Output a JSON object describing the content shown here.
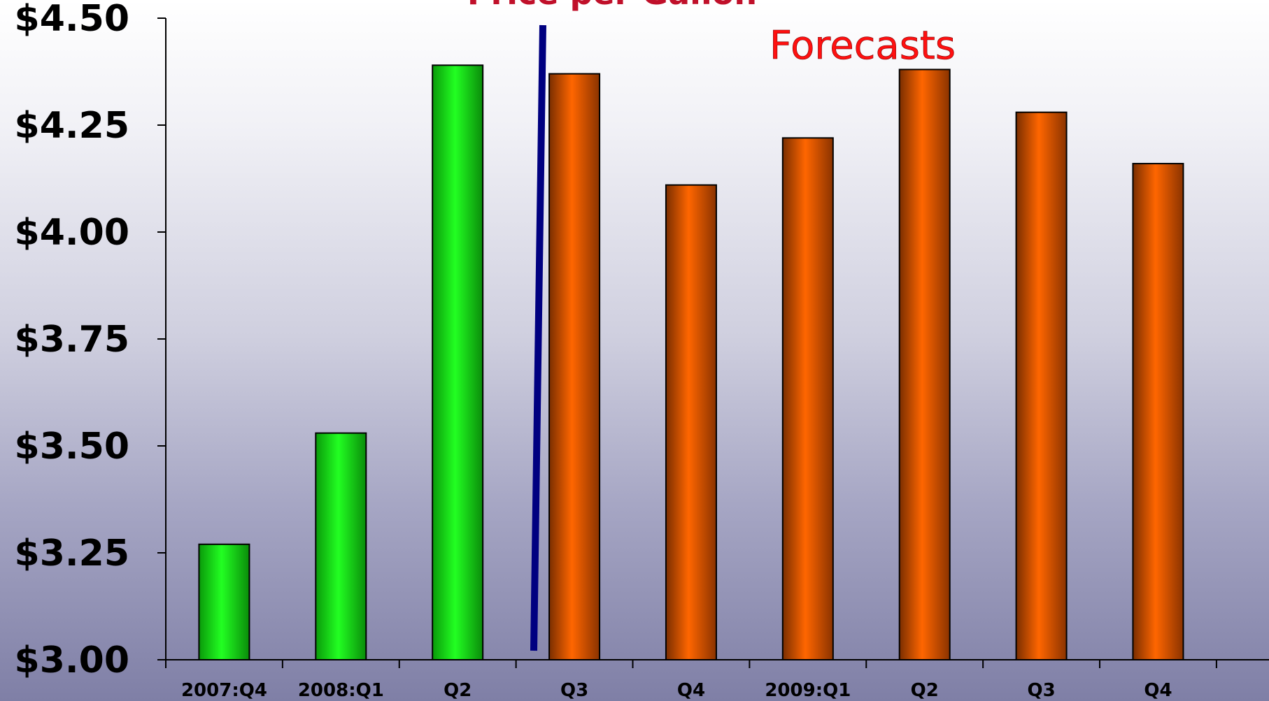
{
  "chart_data": {
    "type": "bar",
    "title": "Price per Gallon",
    "annotation": "Forecasts",
    "categories": [
      "2007:Q4",
      "2008:Q1",
      "Q2",
      "Q3",
      "Q4",
      "2009:Q1",
      "Q2",
      "Q3",
      "Q4"
    ],
    "values": [
      3.27,
      3.53,
      4.39,
      4.37,
      4.11,
      4.22,
      4.38,
      4.28,
      4.16
    ],
    "kind": [
      "actual",
      "actual",
      "actual",
      "forecast",
      "forecast",
      "forecast",
      "forecast",
      "forecast",
      "forecast"
    ],
    "ylim": [
      3.0,
      4.5
    ],
    "yticks": [
      "$3.00",
      "$3.25",
      "$3.50",
      "$3.75",
      "$4.00",
      "$4.25",
      "$4.50"
    ],
    "ytick_values": [
      3.0,
      3.25,
      3.5,
      3.75,
      4.0,
      4.25,
      4.5
    ],
    "xlabel": "",
    "ylabel": "",
    "grid": false,
    "colors": {
      "actual": "#16e016",
      "forecast": "#ff6600",
      "divider": "#000080",
      "title": "#c0102a",
      "annotation": "#ff1010"
    }
  }
}
